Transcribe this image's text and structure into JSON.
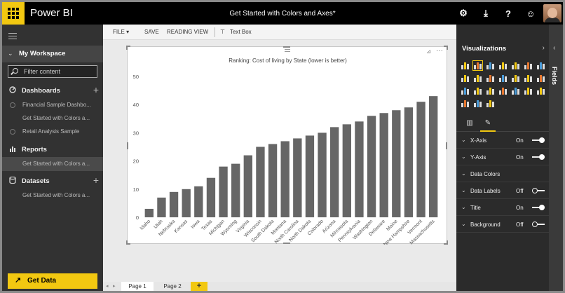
{
  "app": {
    "name": "Power BI",
    "document_title": "Get Started with Colors and Axes*"
  },
  "topbar_icons": [
    "gear-icon",
    "download-icon",
    "help-icon",
    "smiley-icon",
    "user-avatar"
  ],
  "topbar_glyphs": {
    "settings": "⚙",
    "download": "⤓",
    "help": "?",
    "feedback": "☺"
  },
  "sidebar": {
    "workspace": "My Workspace",
    "workspace_chev": "⌄",
    "filter_placeholder": "Filter content",
    "dashboards_label": "Dashboards",
    "dashboards": [
      "Financial Sample Dashbo...",
      "Get Started with Colors a...",
      "Retail Analysis Sample"
    ],
    "reports_label": "Reports",
    "reports": [
      "Get Started with Colors a..."
    ],
    "datasets_label": "Datasets",
    "datasets": [
      "Get Started with Colors a..."
    ],
    "plus": "+",
    "get_data": "Get Data",
    "get_data_glyph": "↗"
  },
  "toolbar": {
    "file": "FILE ▾",
    "save": "SAVE",
    "reading_view": "READING VIEW",
    "text_box": "Text Box",
    "text_box_glyph": "⊤"
  },
  "visual": {
    "pin_glyph": "⊿",
    "more_glyph": "···"
  },
  "chart_data": {
    "type": "bar",
    "title": "Ranking: Cost of living by State (lower is better)",
    "categories": [
      "Idaho",
      "Utah",
      "Nebraska",
      "Kansas",
      "Iowa",
      "Texas",
      "Michigan",
      "Wyoming",
      "Virginia",
      "Wisconsin",
      "South Dakota",
      "Montana",
      "North Carolina",
      "North Dakota",
      "Colorado",
      "Arizona",
      "Minnesota",
      "Pennsylvania",
      "Washington",
      "Delaware",
      "Maine",
      "New Hampshire",
      "Vermont",
      "Massachusetts"
    ],
    "values": [
      3,
      7,
      9,
      10,
      11,
      14,
      18,
      19,
      22,
      25,
      26,
      27,
      28,
      29,
      30,
      32,
      33,
      34,
      36,
      37,
      38,
      39,
      41,
      43
    ],
    "ylim": [
      0,
      50
    ],
    "yticks": [
      0,
      10,
      20,
      30,
      40,
      50
    ],
    "bar_color": "#666666",
    "xlabel": "",
    "ylabel": ""
  },
  "pages": {
    "tabs": [
      "Page 1",
      "Page 2"
    ],
    "active": 0,
    "add": "+",
    "prev": "◂",
    "next": "▸"
  },
  "visualizations": {
    "title": "Visualizations",
    "collapse_glyph": "›",
    "selected_icon": 1,
    "tab_fields_glyph": "▥",
    "tab_format_glyph": "✎",
    "format_rows": [
      {
        "label": "X-Axis",
        "state": "On",
        "toggle": true,
        "on": true
      },
      {
        "label": "Y-Axis",
        "state": "On",
        "toggle": true,
        "on": true
      },
      {
        "label": "Data Colors",
        "state": "",
        "toggle": false,
        "on": false
      },
      {
        "label": "Data Labels",
        "state": "Off",
        "toggle": true,
        "on": false
      },
      {
        "label": "Title",
        "state": "On",
        "toggle": true,
        "on": true
      },
      {
        "label": "Background",
        "state": "Off",
        "toggle": true,
        "on": false
      }
    ],
    "chev_glyph": "⌄"
  },
  "fields_pane": {
    "label": "Fields",
    "collapse_glyph": "‹"
  },
  "colors": {
    "accent": "#f2c811",
    "sidebar": "#323232",
    "topbar": "#000000",
    "bar": "#666666"
  }
}
